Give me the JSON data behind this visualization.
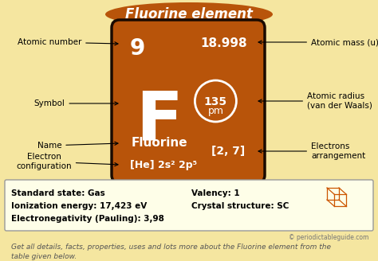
{
  "title": "Fluorine element",
  "title_bg_color": "#B8540A",
  "title_text_color": "#FFFFFF",
  "bg_color": "#F5E6A0",
  "element_box_color": "#B8540A",
  "element_box_border": "#1A0A00",
  "atomic_number": "9",
  "atomic_mass": "18.998",
  "symbol": "F",
  "name": "Fluorine",
  "electron_arrangement": "[2, 7]",
  "left_labels": [
    "Atomic number",
    "Symbol",
    "Name",
    "Electron\nconfiguration"
  ],
  "right_labels": [
    "Atomic mass (u)",
    "Atomic radius\n(van der Waals)",
    "Electrons\narrangement"
  ],
  "info_line1": "Standard state: Gas",
  "info_line2": "Ionization energy: 17,423 eV",
  "info_line3": "Electronegativity (Pauling): 3,98",
  "info_right1": "Valency: 1",
  "info_right2": "Crystal structure: SC",
  "copyright": "© periodictableguide.com",
  "footer1": "Get all details, facts, properties, uses and lots more about the Fluorine element from the",
  "footer2": "table given below."
}
